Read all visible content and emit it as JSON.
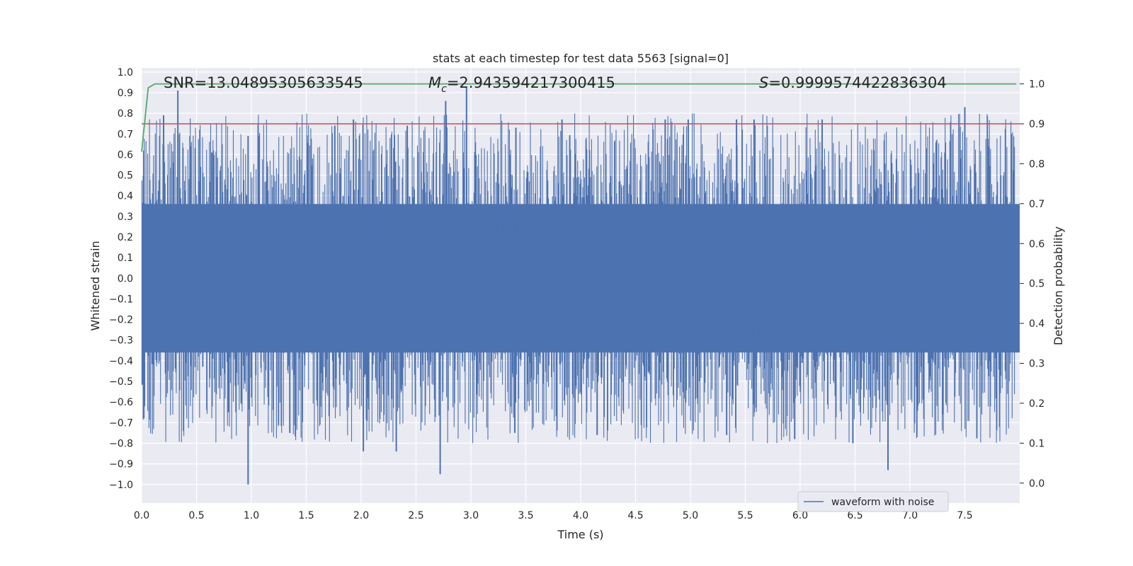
{
  "chart_data": {
    "type": "line",
    "title": "stats at each timestep for test data 5563 [signal=0]",
    "xlabel": "Time (s)",
    "ylabel_left": "Whitened strain",
    "ylabel_right": "Detection probability",
    "xlim": [
      0.0,
      8.0
    ],
    "ylim_left": [
      -1.09,
      1.02
    ],
    "ylim_right": [
      -0.05,
      1.04
    ],
    "grid": true,
    "x_ticks": [
      "0.0",
      "0.5",
      "1.0",
      "1.5",
      "2.0",
      "2.5",
      "3.0",
      "3.5",
      "4.0",
      "4.5",
      "5.0",
      "5.5",
      "6.0",
      "6.5",
      "7.0",
      "7.5"
    ],
    "y_left_ticks": [
      "1.0",
      "0.9",
      "0.8",
      "0.7",
      "0.6",
      "0.5",
      "0.4",
      "0.3",
      "0.2",
      "0.1",
      "0.0",
      "−0.1",
      "−0.2",
      "−0.3",
      "−0.4",
      "−0.5",
      "−0.6",
      "−0.7",
      "−0.8",
      "−0.9",
      "−1.0"
    ],
    "y_right_ticks": [
      "1.0",
      "0.9",
      "0.8",
      "0.7",
      "0.6",
      "0.5",
      "0.4",
      "0.3",
      "0.2",
      "0.1",
      "0.0"
    ],
    "annotations": {
      "snr": "SNR=13.04895305633545",
      "mc_symbol": "M",
      "mc_sub": "c",
      "mc_value": "=2.943594217300415",
      "s_symbol": "S",
      "s_value": "=0.9999574422836304"
    },
    "legend": {
      "label": "waveform with noise",
      "placement": "lower-right"
    },
    "threshold": {
      "name": "detection threshold",
      "y_right": 0.9,
      "color": "#C44E52"
    },
    "series": [
      {
        "name": "waveform with noise",
        "axis": "left",
        "color": "#4C72B0",
        "band_upper": 0.36,
        "band_lower": -0.36,
        "typical_peak_upper": 0.5,
        "typical_peak_lower": -0.5,
        "peaks": [
          {
            "t": 0.02,
            "v": 0.62
          },
          {
            "t": 0.2,
            "v": 0.79
          },
          {
            "t": 0.33,
            "v": 0.91
          },
          {
            "t": 0.64,
            "v": 0.61
          },
          {
            "t": 0.97,
            "v": 0.69
          },
          {
            "t": 1.76,
            "v": 0.74
          },
          {
            "t": 1.93,
            "v": 0.77
          },
          {
            "t": 2.42,
            "v": 0.74
          },
          {
            "t": 2.77,
            "v": 0.86
          },
          {
            "t": 2.96,
            "v": 0.93
          },
          {
            "t": 3.41,
            "v": 0.73
          },
          {
            "t": 3.83,
            "v": 0.77
          },
          {
            "t": 4.77,
            "v": 0.77
          },
          {
            "t": 4.98,
            "v": 0.77
          },
          {
            "t": 5.42,
            "v": 0.77
          },
          {
            "t": 5.58,
            "v": 0.77
          },
          {
            "t": 6.2,
            "v": 0.77
          },
          {
            "t": 7.5,
            "v": 0.83
          },
          {
            "t": 0.02,
            "v": -0.68
          },
          {
            "t": 0.79,
            "v": -0.65
          },
          {
            "t": 0.97,
            "v": -1.0
          },
          {
            "t": 1.35,
            "v": -0.75
          },
          {
            "t": 2.02,
            "v": -0.84
          },
          {
            "t": 2.32,
            "v": -0.84
          },
          {
            "t": 2.72,
            "v": -0.95
          },
          {
            "t": 3.4,
            "v": -0.75
          },
          {
            "t": 4.15,
            "v": -0.76
          },
          {
            "t": 5.33,
            "v": -0.76
          },
          {
            "t": 5.95,
            "v": -0.78
          },
          {
            "t": 6.48,
            "v": -0.8
          },
          {
            "t": 6.8,
            "v": -0.93
          },
          {
            "t": 7.3,
            "v": -0.66
          }
        ]
      },
      {
        "name": "detection probability",
        "axis": "right",
        "color": "#55A868",
        "x": [
          0.0,
          0.06,
          0.12,
          8.0
        ],
        "y": [
          0.83,
          0.99,
          1.0,
          1.0
        ]
      }
    ]
  }
}
